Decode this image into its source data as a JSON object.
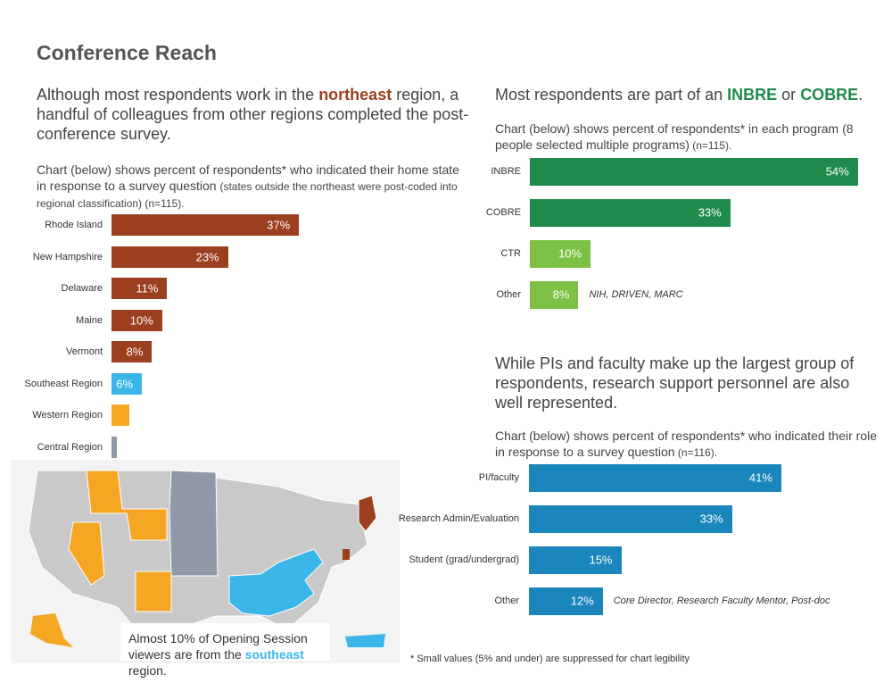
{
  "title": "Conference Reach",
  "chart_data": [
    {
      "type": "bar",
      "orientation": "horizontal",
      "headline": [
        "Although most respondents work in the ",
        "northeast",
        " region, a handful of colleagues from other regions completed the post-conference survey."
      ],
      "subtitle": [
        "Chart (below) shows percent of respondents* who indicated their home state in response to a survey question ",
        "(states outside the northeast were post-coded into regional classification) (n=115)."
      ],
      "categories": [
        "Rhode Island",
        "New Hampshire",
        "Delaware",
        "Maine",
        "Vermont",
        "Southeast Region",
        "Western Region",
        "Central Region"
      ],
      "values": [
        37,
        23,
        11,
        10,
        8,
        6,
        3.5,
        1
      ],
      "value_labels": [
        "37%",
        "23%",
        "11%",
        "10%",
        "8%",
        "6%",
        null,
        null
      ],
      "colors": [
        "#9c3f1f",
        "#9c3f1f",
        "#9c3f1f",
        "#9c3f1f",
        "#9c3f1f",
        "#3bb6e8",
        "#f5a623",
        "#8f99a8"
      ],
      "map_note": [
        "Almost 10% of Opening Session viewers are from the ",
        "southeast",
        " region."
      ]
    },
    {
      "type": "bar",
      "orientation": "horizontal",
      "headline": [
        "Most respondents are part of an ",
        "INBRE",
        " or ",
        "COBRE",
        "."
      ],
      "subtitle": [
        "Chart (below) shows percent of respondents* in each program (8 people selected multiple programs)",
        " (n=115)."
      ],
      "categories": [
        "INBRE",
        "COBRE",
        "CTR",
        "Other"
      ],
      "values": [
        54,
        33,
        10,
        8
      ],
      "value_labels": [
        "54%",
        "33%",
        "10%",
        "8%"
      ],
      "colors": [
        "#1e8b4c",
        "#1e8b4c",
        "#7cc143",
        "#7cc143"
      ],
      "annotation": "NIH, DRIVEN, MARC"
    },
    {
      "type": "bar",
      "orientation": "horizontal",
      "headline": [
        "While PIs and faculty make up the largest group of respondents, research support personnel are also well represented."
      ],
      "subtitle": [
        "Chart (below) shows percent of respondents* who indicated their role in response to a survey question",
        " (n=116)."
      ],
      "categories": [
        "PI/faculty",
        "Research Admin/Evaluation",
        "Student (grad/undergrad)",
        "Other"
      ],
      "values": [
        41,
        33,
        15,
        12
      ],
      "value_labels": [
        "41%",
        "33%",
        "15%",
        "12%"
      ],
      "colors": [
        "#1a86bc",
        "#1a86bc",
        "#1a86bc",
        "#1a86bc"
      ],
      "annotation": "Core Director, Research Faculty Mentor, Post-doc"
    }
  ],
  "footnote": "* Small values (5% and under) are suppressed for chart legibility"
}
